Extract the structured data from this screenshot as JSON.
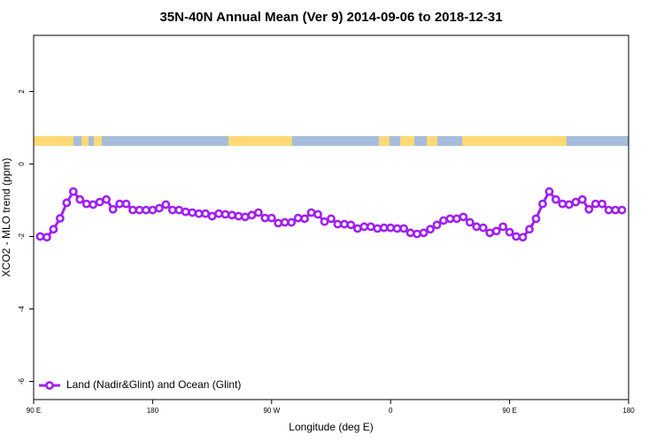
{
  "chart_data": {
    "type": "line",
    "title": "35N-40N Annual Mean (Ver 9)   2014-09-06 to 2018-12-31",
    "x_label": "Longitude (deg E)",
    "y_label": "XCO2 - MLO trend (ppm)",
    "x": [
      95,
      100,
      105,
      110,
      115,
      120,
      125,
      130,
      135,
      140,
      145,
      150,
      155,
      160,
      165,
      170,
      175,
      180,
      185,
      190,
      195,
      200,
      205,
      210,
      215,
      220,
      225,
      230,
      235,
      240,
      245,
      250,
      255,
      260,
      265,
      270,
      275,
      280,
      285,
      290,
      295,
      300,
      305,
      310,
      315,
      320,
      325,
      330,
      335,
      340,
      345,
      350,
      355,
      360,
      365,
      370,
      375,
      380,
      385,
      390,
      395,
      400,
      405,
      410,
      415,
      420,
      425,
      430,
      435,
      440,
      445,
      450,
      455,
      460,
      465,
      470,
      475,
      480,
      485,
      490,
      495,
      500,
      505,
      510,
      515,
      520,
      525,
      530,
      535
    ],
    "series": [
      {
        "name": "Land (Nadir&Glint) and Ocean (Glint)",
        "color": "#a020f0",
        "values": [
          -2.0,
          -2.02,
          -1.8,
          -1.5,
          -1.07,
          -0.76,
          -0.98,
          -1.1,
          -1.12,
          -1.05,
          -0.98,
          -1.25,
          -1.1,
          -1.1,
          -1.27,
          -1.27,
          -1.27,
          -1.27,
          -1.22,
          -1.12,
          -1.27,
          -1.27,
          -1.32,
          -1.34,
          -1.37,
          -1.37,
          -1.44,
          -1.37,
          -1.39,
          -1.41,
          -1.44,
          -1.46,
          -1.41,
          -1.34,
          -1.49,
          -1.49,
          -1.63,
          -1.61,
          -1.61,
          -1.49,
          -1.51,
          -1.34,
          -1.39,
          -1.59,
          -1.51,
          -1.66,
          -1.66,
          -1.68,
          -1.78,
          -1.73,
          -1.73,
          -1.78,
          -1.76,
          -1.76,
          -1.78,
          -1.78,
          -1.9,
          -1.93,
          -1.9,
          -1.8,
          -1.68,
          -1.56,
          -1.51,
          -1.51,
          -1.46,
          -1.61,
          -1.73,
          -1.76,
          -1.9,
          -1.85,
          -1.73,
          -1.88,
          -2.0,
          -2.02,
          -1.8,
          -1.51,
          -1.1,
          -0.76,
          -0.98,
          -1.1,
          -1.12,
          -1.05,
          -0.98,
          -1.25,
          -1.1,
          -1.1,
          -1.27,
          -1.27,
          -1.27
        ]
      }
    ],
    "xlim": [
      90,
      540
    ],
    "xticks": [
      {
        "value": 90,
        "label": "90 E"
      },
      {
        "value": 180,
        "label": "180"
      },
      {
        "value": 270,
        "label": "90 W"
      },
      {
        "value": 360,
        "label": "0"
      },
      {
        "value": 450,
        "label": "90 E"
      },
      {
        "value": 540,
        "label": "180"
      }
    ],
    "ylim": [
      -6.5,
      3.55
    ],
    "yticks": [
      2,
      0,
      -2,
      -4,
      -6
    ],
    "legend": "bottom-left"
  }
}
